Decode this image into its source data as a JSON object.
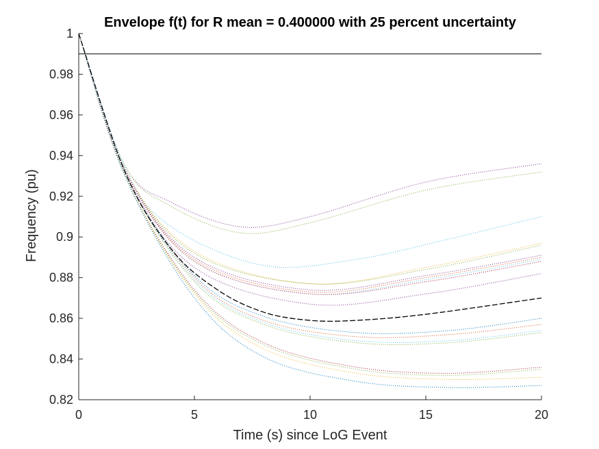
{
  "chart_data": {
    "type": "line",
    "title": "Envelope f(t) for R mean = 0.400000 with 25 percent uncertainty",
    "xlabel": "Time (s) since LoG Event",
    "ylabel": "Frequency (pu)",
    "xlim": [
      0,
      20
    ],
    "ylim": [
      0.82,
      1.0
    ],
    "xticks": [
      "0",
      "5",
      "10",
      "15",
      "20"
    ],
    "yticks": [
      "0.82",
      "0.84",
      "0.86",
      "0.88",
      "0.9",
      "0.92",
      "0.94",
      "0.96",
      "0.98",
      "1"
    ],
    "grid": false,
    "reference_line": {
      "y": 0.99,
      "color": "#000000"
    },
    "mean_series": {
      "style": "dashed",
      "color": "#000000",
      "x": [
        0,
        2,
        4,
        6,
        8,
        10,
        12,
        15,
        20
      ],
      "y": [
        1.0,
        0.932,
        0.894,
        0.874,
        0.863,
        0.859,
        0.859,
        0.862,
        0.87
      ]
    },
    "series": [
      {
        "color": "#7e2f8e",
        "x": [
          0,
          2,
          4,
          7,
          10,
          15,
          20
        ],
        "y": [
          1.0,
          0.935,
          0.917,
          0.905,
          0.91,
          0.927,
          0.936
        ]
      },
      {
        "color": "#77ac30",
        "x": [
          0,
          2,
          4,
          7,
          10,
          15,
          20
        ],
        "y": [
          1.0,
          0.935,
          0.915,
          0.902,
          0.907,
          0.923,
          0.932
        ]
      },
      {
        "color": "#4dbeee",
        "x": [
          0,
          2,
          4,
          8,
          12,
          16,
          20
        ],
        "y": [
          1.0,
          0.934,
          0.905,
          0.886,
          0.889,
          0.899,
          0.91
        ]
      },
      {
        "color": "#edb120",
        "x": [
          0,
          2,
          5,
          10,
          15,
          20
        ],
        "y": [
          1.0,
          0.933,
          0.893,
          0.877,
          0.885,
          0.897
        ]
      },
      {
        "color": "#77ac30",
        "x": [
          0,
          2,
          5,
          10,
          15,
          20
        ],
        "y": [
          1.0,
          0.933,
          0.892,
          0.877,
          0.884,
          0.896
        ]
      },
      {
        "color": "#7e2f8e",
        "x": [
          0,
          2,
          5,
          10,
          15,
          20
        ],
        "y": [
          1.0,
          0.933,
          0.89,
          0.874,
          0.881,
          0.891
        ]
      },
      {
        "color": "#d95319",
        "x": [
          0,
          2,
          5,
          10,
          15,
          20
        ],
        "y": [
          1.0,
          0.933,
          0.889,
          0.873,
          0.88,
          0.89
        ]
      },
      {
        "color": "#4dbeee",
        "x": [
          0,
          2,
          5,
          10,
          15,
          20
        ],
        "y": [
          1.0,
          0.933,
          0.888,
          0.872,
          0.879,
          0.889
        ]
      },
      {
        "color": "#a2142f",
        "x": [
          0,
          2,
          5,
          10,
          15,
          20
        ],
        "y": [
          1.0,
          0.933,
          0.888,
          0.872,
          0.878,
          0.888
        ]
      },
      {
        "color": "#7e2f8e",
        "x": [
          0,
          2,
          5,
          10,
          15,
          20
        ],
        "y": [
          1.0,
          0.932,
          0.885,
          0.867,
          0.872,
          0.882
        ]
      },
      {
        "color": "#0072bd",
        "x": [
          0,
          2,
          5,
          8,
          12,
          16,
          20
        ],
        "y": [
          1.0,
          0.931,
          0.881,
          0.861,
          0.853,
          0.854,
          0.86
        ]
      },
      {
        "color": "#d95319",
        "x": [
          0,
          2,
          5,
          8,
          12,
          16,
          20
        ],
        "y": [
          1.0,
          0.931,
          0.88,
          0.859,
          0.851,
          0.852,
          0.857
        ]
      },
      {
        "color": "#4dbeee",
        "x": [
          0,
          2,
          5,
          8,
          12,
          16,
          20
        ],
        "y": [
          1.0,
          0.931,
          0.879,
          0.858,
          0.849,
          0.849,
          0.854
        ]
      },
      {
        "color": "#77ac30",
        "x": [
          0,
          2,
          5,
          8,
          12,
          16,
          20
        ],
        "y": [
          1.0,
          0.931,
          0.878,
          0.857,
          0.848,
          0.848,
          0.853
        ]
      },
      {
        "color": "#a2142f",
        "x": [
          0,
          2,
          5,
          8,
          12,
          16,
          20
        ],
        "y": [
          1.0,
          0.93,
          0.874,
          0.848,
          0.836,
          0.833,
          0.836
        ]
      },
      {
        "color": "#77ac30",
        "x": [
          0,
          2,
          5,
          8,
          12,
          16,
          20
        ],
        "y": [
          1.0,
          0.93,
          0.873,
          0.847,
          0.835,
          0.832,
          0.835
        ]
      },
      {
        "color": "#edb120",
        "x": [
          0,
          2,
          5,
          8,
          12,
          16,
          20
        ],
        "y": [
          1.0,
          0.93,
          0.872,
          0.845,
          0.833,
          0.83,
          0.831
        ]
      },
      {
        "color": "#0072bd",
        "x": [
          0,
          2,
          5,
          8,
          12,
          16,
          20
        ],
        "y": [
          1.0,
          0.93,
          0.87,
          0.841,
          0.829,
          0.826,
          0.827
        ]
      }
    ]
  }
}
